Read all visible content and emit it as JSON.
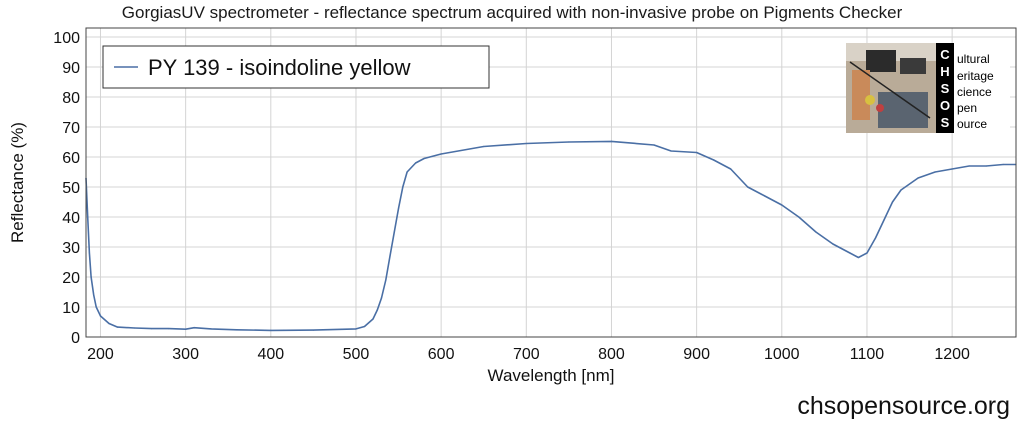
{
  "header": {
    "title": "GorgiasUV spectrometer - reflectance spectrum acquired with non-invasive probe on Pigments Checker"
  },
  "logo": {
    "letters": [
      "C",
      "H",
      "S",
      "O",
      "S"
    ],
    "words": [
      "ultural",
      "eritage",
      "cience",
      "pen",
      "ource"
    ],
    "icon": "spectrometer-photo"
  },
  "footer": {
    "website": "chsopensource.org"
  },
  "chart_data": {
    "type": "line",
    "title": "",
    "xlabel": "Wavelength [nm]",
    "ylabel": "Reflectance (%)",
    "xlim": [
      183,
      1275
    ],
    "ylim": [
      0,
      103
    ],
    "xticks": [
      200,
      300,
      400,
      500,
      600,
      700,
      800,
      900,
      1000,
      1100,
      1200
    ],
    "yticks": [
      0,
      10,
      20,
      30,
      40,
      50,
      60,
      70,
      80,
      90,
      100
    ],
    "grid": true,
    "legend_position": "top-left",
    "line_color": "#4a6fa5",
    "series": [
      {
        "name": "PY 139 - isoindoline yellow",
        "x": [
          183,
          185,
          187,
          189,
          192,
          195,
          200,
          210,
          220,
          240,
          260,
          280,
          300,
          310,
          330,
          360,
          400,
          450,
          500,
          510,
          520,
          525,
          530,
          535,
          540,
          545,
          550,
          555,
          560,
          570,
          580,
          600,
          650,
          700,
          750,
          800,
          850,
          870,
          900,
          920,
          940,
          950,
          960,
          980,
          1000,
          1020,
          1040,
          1060,
          1080,
          1090,
          1100,
          1110,
          1120,
          1130,
          1140,
          1160,
          1180,
          1200,
          1220,
          1240,
          1260,
          1275
        ],
        "y": [
          53,
          40,
          28,
          20,
          14,
          10,
          7,
          4.5,
          3.3,
          3,
          2.8,
          2.8,
          2.6,
          3.1,
          2.7,
          2.4,
          2.2,
          2.3,
          2.7,
          3.5,
          6,
          9,
          13,
          19,
          27,
          35,
          43,
          50,
          55,
          58,
          59.5,
          61,
          63.5,
          64.5,
          65,
          65.2,
          64,
          62,
          61.5,
          59,
          56,
          53,
          50,
          47,
          44,
          40,
          35,
          31,
          28,
          26.5,
          28,
          33,
          39,
          45,
          49,
          53,
          55,
          56,
          57,
          57,
          57.5,
          57.5
        ]
      }
    ]
  }
}
